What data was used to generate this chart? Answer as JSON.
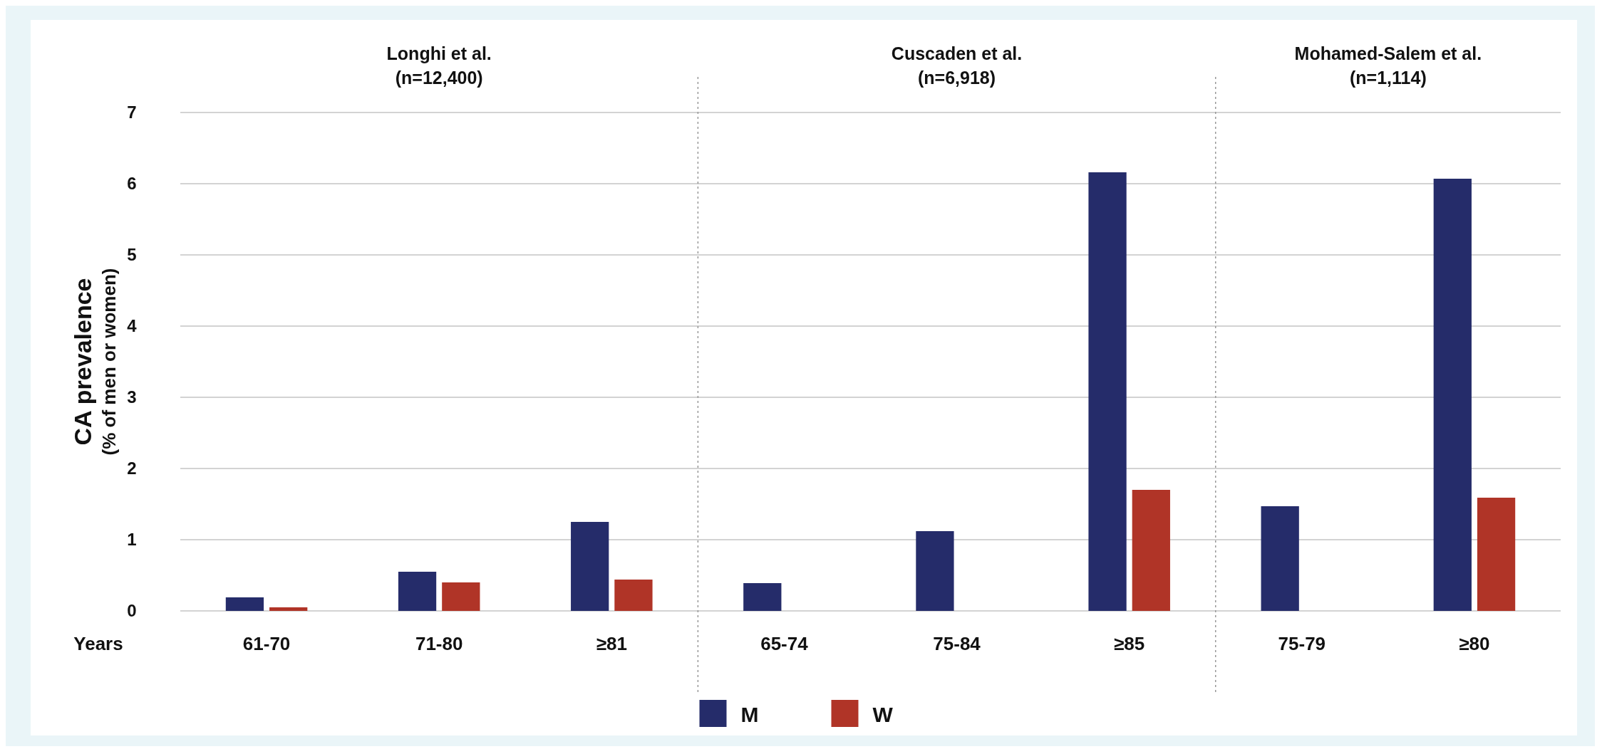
{
  "chart_data": {
    "type": "bar",
    "categories": [
      "61-70",
      "71-80",
      "≥81",
      "65-74",
      "75-84",
      "≥85",
      "75-79",
      "≥80"
    ],
    "xlabel": "Years",
    "ylabel": "CA prevalence\n(% of men or women)",
    "series": [
      {
        "name": "M",
        "color": "#252c6a",
        "values": [
          0.19,
          0.55,
          1.25,
          0.39,
          1.12,
          6.16,
          1.47,
          6.07
        ]
      },
      {
        "name": "W",
        "color": "#b03427",
        "values": [
          0.05,
          0.4,
          0.44,
          null,
          null,
          1.7,
          null,
          1.59
        ]
      }
    ],
    "ylim": [
      0,
      7
    ],
    "yticks": [
      0,
      1,
      2,
      3,
      4,
      5,
      6,
      7
    ],
    "grid": "y",
    "legend": "bottom",
    "annotations": [
      "Longhi et al.\n(n=12,400)",
      "Cuscaden et al.\n(n=6,918)",
      "Mohamed-Salem et al.\n(n=1,114)"
    ]
  }
}
